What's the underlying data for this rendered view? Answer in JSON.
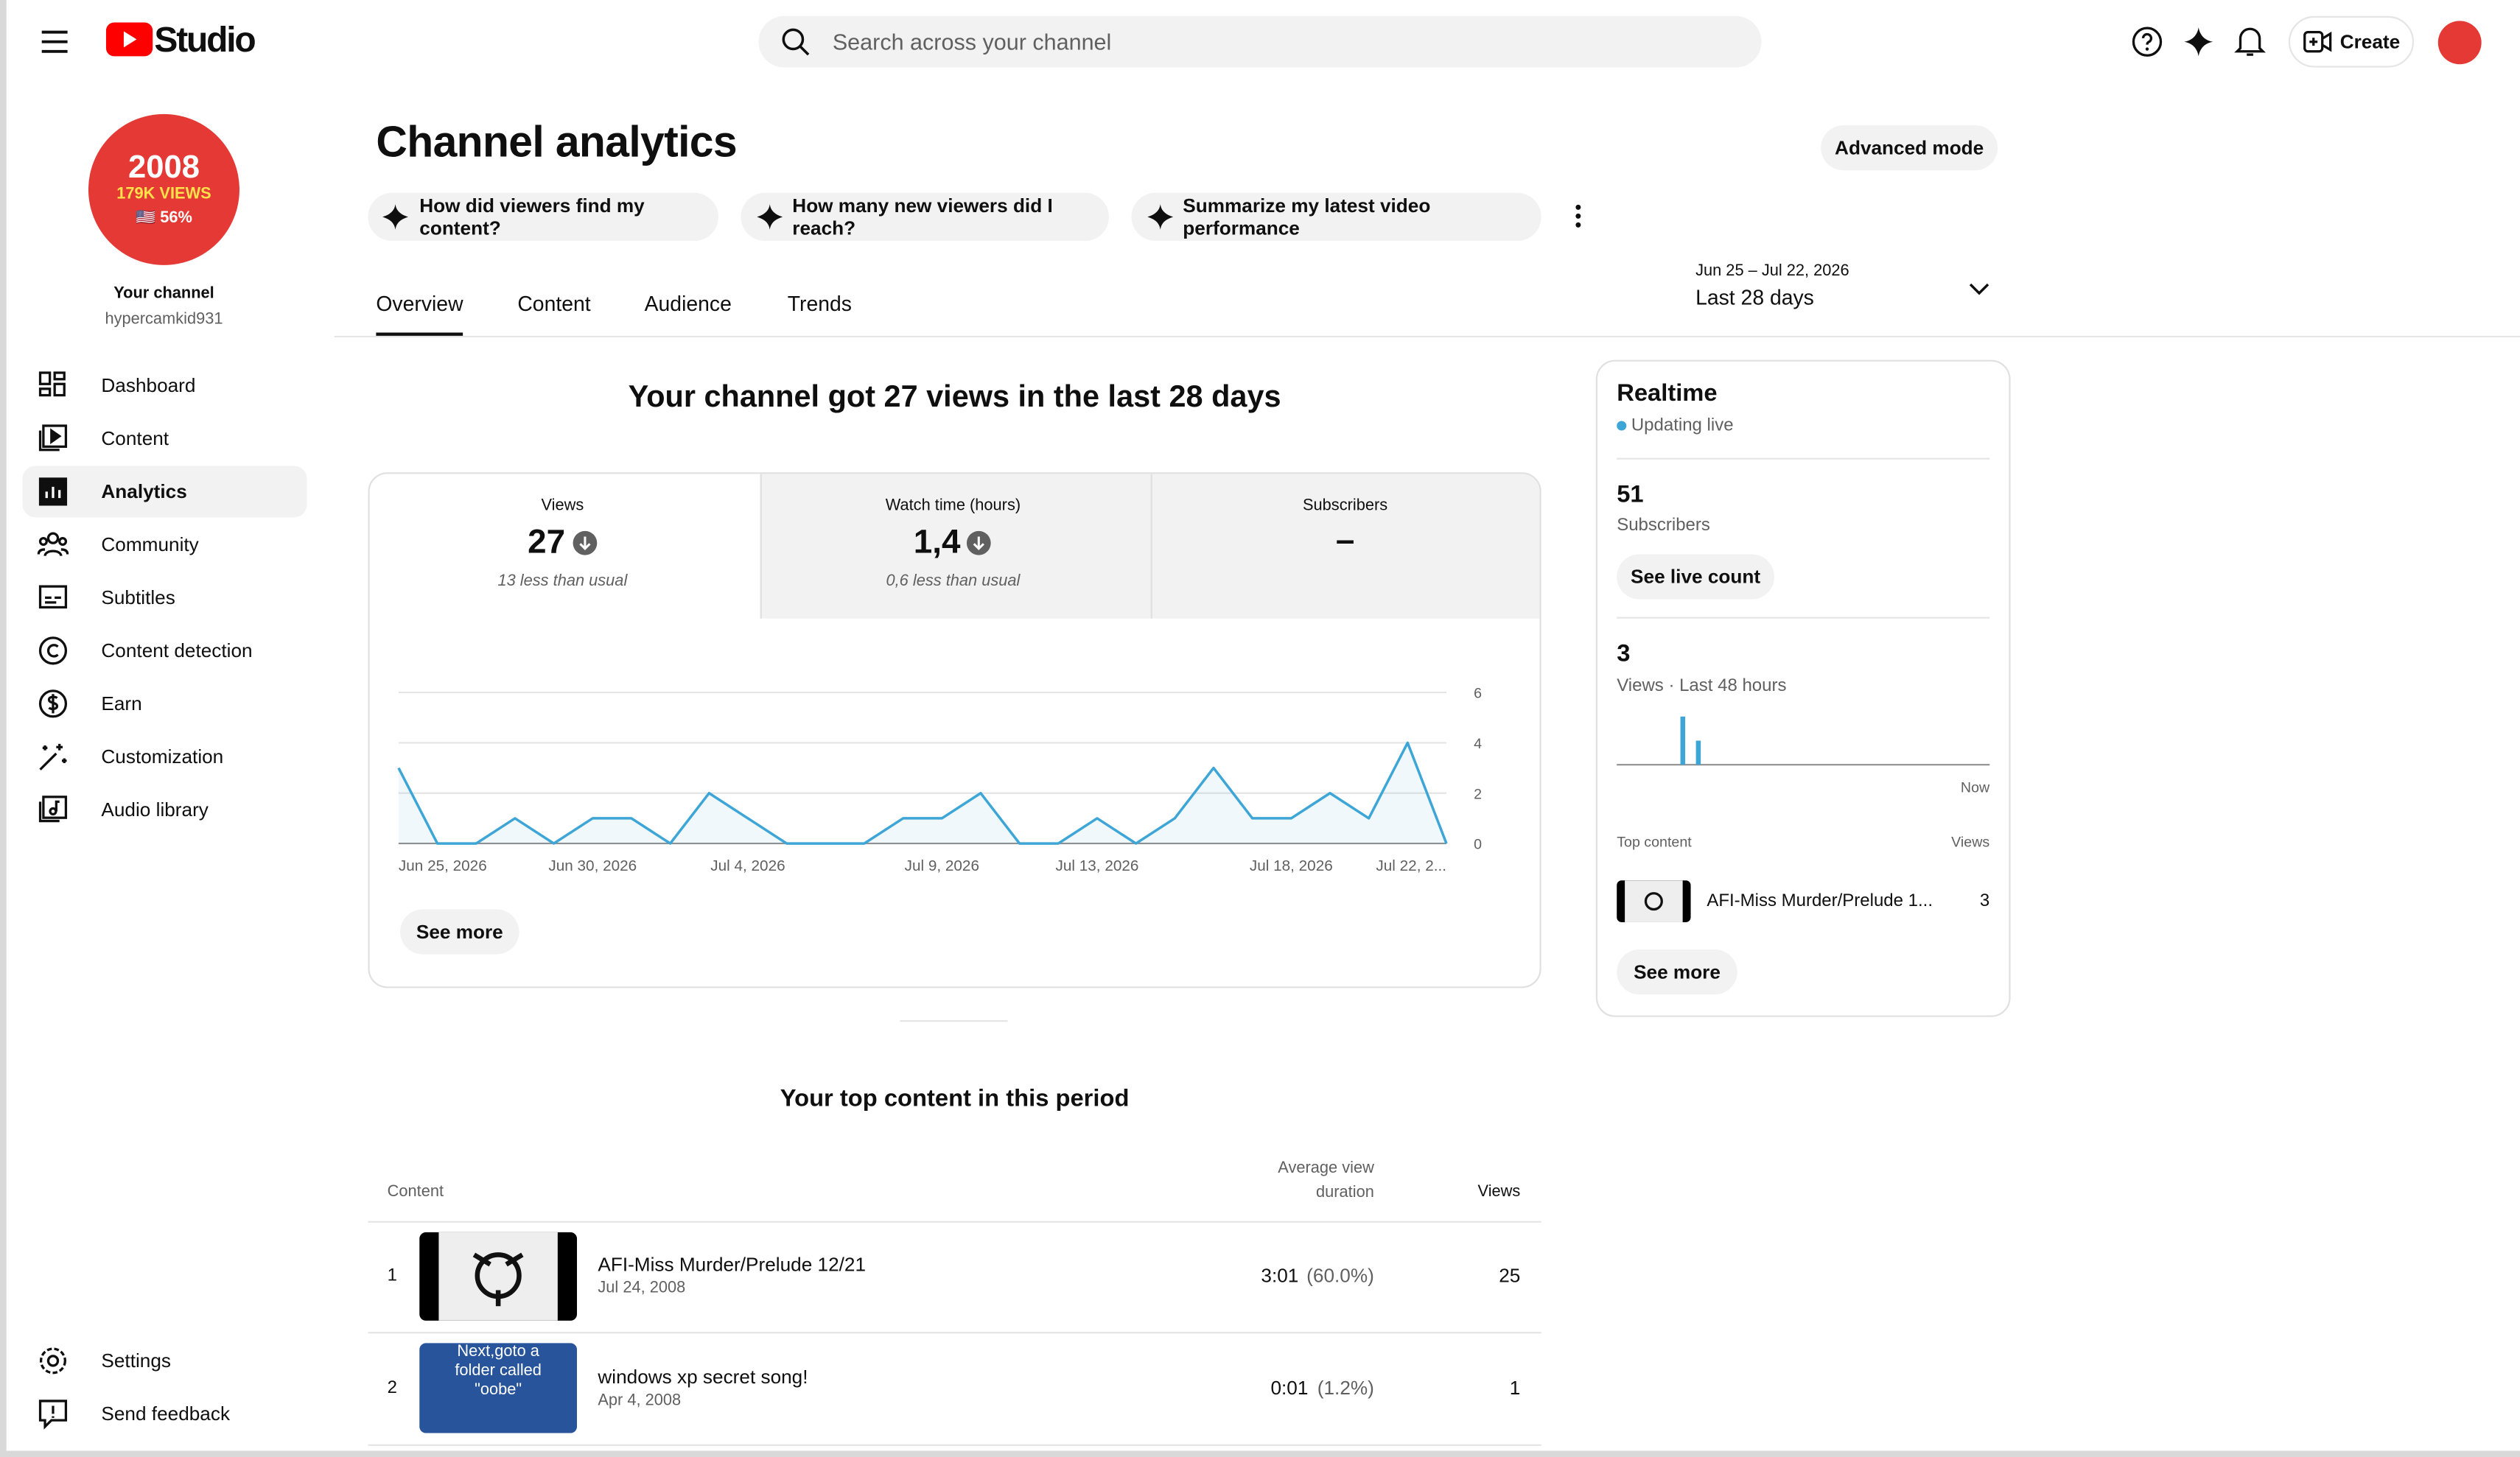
{
  "header": {
    "logo": "Studio",
    "search_placeholder": "Search across your channel",
    "create": "Create"
  },
  "sidebar": {
    "avatar": {
      "line1": "2008",
      "line2": "179K VIEWS",
      "line3": "🇺🇸 56%"
    },
    "channel_label": "Your channel",
    "handle": "hypercamkid931",
    "nav": [
      "Dashboard",
      "Content",
      "Analytics",
      "Community",
      "Subtitles",
      "Content detection",
      "Earn",
      "Customization",
      "Audio library"
    ],
    "active": 2,
    "bottom": [
      "Settings",
      "Send feedback"
    ]
  },
  "page": {
    "title": "Channel analytics",
    "advanced": "Advanced mode",
    "prompts": [
      "How did viewers find my content?",
      "How many new viewers did I reach?",
      "Summarize my latest video performance"
    ],
    "tabs": [
      "Overview",
      "Content",
      "Audience",
      "Trends"
    ],
    "active_tab": 0,
    "date_range": {
      "dates": "Jun 25 – Jul 22, 2026",
      "label": "Last 28 days"
    }
  },
  "overview": {
    "headline": "Your channel got 27 views in the last 28 days",
    "metrics": [
      {
        "label": "Views",
        "value": "27",
        "note": "13 less than usual"
      },
      {
        "label": "Watch time (hours)",
        "value": "1,4",
        "note": "0,6 less than usual"
      },
      {
        "label": "Subscribers",
        "value": "–"
      }
    ],
    "chart": {
      "type": "line",
      "categories": [
        "Jun 25, 2026",
        null,
        null,
        null,
        null,
        "Jun 30, 2026",
        null,
        null,
        null,
        "Jul 4, 2026",
        null,
        null,
        null,
        null,
        "Jul 9, 2026",
        null,
        null,
        null,
        "Jul 13, 2026",
        null,
        null,
        null,
        null,
        "Jul 18, 2026",
        null,
        null,
        null,
        "Jul 22, 2..."
      ],
      "values": [
        3,
        0,
        0,
        1,
        0,
        1,
        1,
        0,
        2,
        1,
        0,
        0,
        0,
        1,
        1,
        2,
        0,
        0,
        1,
        0,
        1,
        3,
        1,
        1,
        2,
        1,
        4,
        0
      ],
      "color": "#3ea6d6",
      "ylim": [
        0,
        6
      ],
      "yticks": [
        0,
        2,
        4,
        6
      ],
      "grid": true
    },
    "see_more": "See more"
  },
  "top_content": {
    "title": "Your top content in this period",
    "columns": [
      "Content",
      "Average view duration",
      "Views"
    ],
    "rows": [
      {
        "rank": 1,
        "title": "AFI-Miss Murder/Prelude 12/21",
        "date": "Jul 24, 2008",
        "duration": "3:01",
        "percent": "(60.0%)",
        "views": 25
      },
      {
        "rank": 2,
        "title": "windows xp secret song!",
        "date": "Apr 4, 2008",
        "duration": "0:01",
        "percent": "(1.2%)",
        "views": 1,
        "thumbnail_text": "Next,goto a folder called \"oobe\""
      }
    ]
  },
  "realtime": {
    "title": "Realtime",
    "status": "Updating live",
    "subscribers": 51,
    "subscribers_label": "Subscribers",
    "see_live": "See live count",
    "views": 3,
    "views_label": "Views · Last 48 hours",
    "chart": {
      "type": "bar",
      "values": [
        0,
        0,
        0,
        0,
        0,
        0,
        0,
        0,
        2,
        0,
        1,
        0,
        0,
        0,
        0,
        0,
        0,
        0,
        0,
        0,
        0,
        0,
        0,
        0,
        0,
        0,
        0,
        0,
        0,
        0,
        0,
        0,
        0,
        0,
        0,
        0,
        0,
        0,
        0,
        0,
        0,
        0,
        0,
        0,
        0,
        0,
        0,
        0
      ],
      "color": "#3ea6d6",
      "ylim": [
        0,
        2
      ]
    },
    "now_label": "Now",
    "top_content_label": "Top content",
    "views_col": "Views",
    "top": {
      "title": "AFI-Miss Murder/Prelude 1...",
      "views": 3
    },
    "see_more": "See more"
  }
}
